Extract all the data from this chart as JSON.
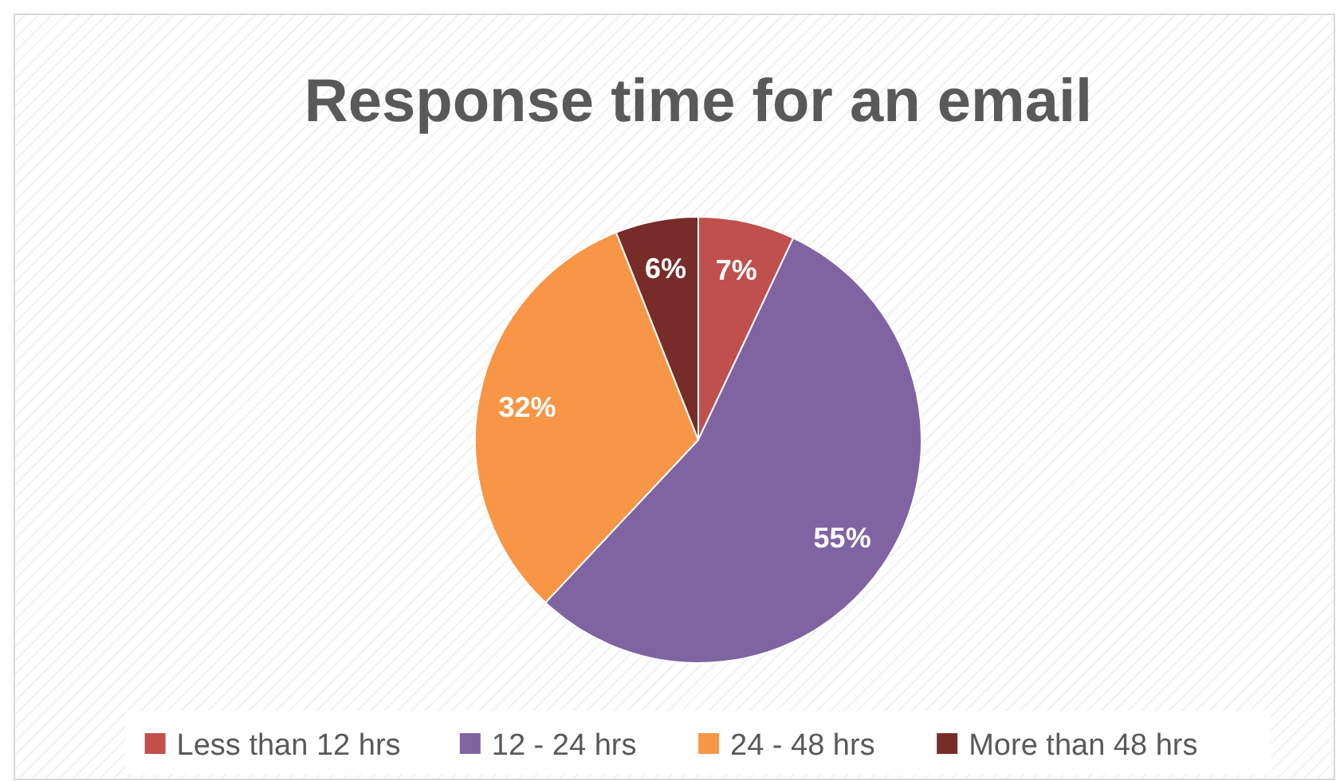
{
  "chart_data": {
    "type": "pie",
    "title": "Response time for an email",
    "categories": [
      "Less than 12 hrs",
      "12 - 24 hrs",
      "24 - 48 hrs",
      "More than 48 hrs"
    ],
    "values": [
      7,
      55,
      32,
      6
    ],
    "colors": [
      "#c0504d",
      "#8064a2",
      "#f79646",
      "#772c2a"
    ],
    "value_labels": [
      "7%",
      "55%",
      "32%",
      "6%"
    ],
    "legend": "bottom"
  }
}
